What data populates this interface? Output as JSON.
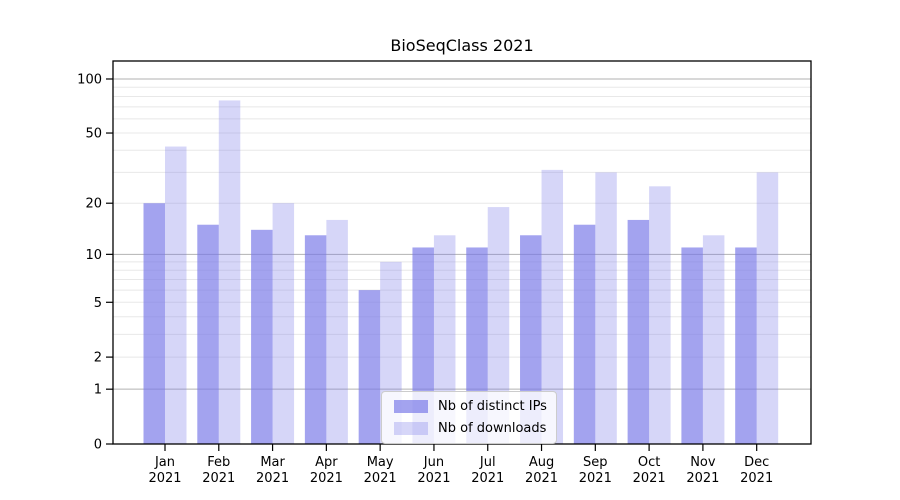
{
  "title": "BioSeqClass 2021",
  "legend": {
    "items": [
      {
        "label": "Nb of distinct IPs",
        "color": "rgba(120,120,232,0.68)"
      },
      {
        "label": "Nb of downloads",
        "color": "rgba(120,120,232,0.30)"
      }
    ]
  },
  "colors": {
    "bar_distinct_ips": "rgba(120,120,232,0.68)",
    "bar_downloads": "rgba(120,120,232,0.30)",
    "major_gridline": "#b2b2b2",
    "minor_gridline": "#e8e8e8",
    "axis": "#000000"
  },
  "chart_data": {
    "type": "bar",
    "title": "BioSeqClass 2021",
    "categories": [
      "Jan 2021",
      "Feb 2021",
      "Mar 2021",
      "Apr 2021",
      "May 2021",
      "Jun 2021",
      "Jul 2021",
      "Aug 2021",
      "Sep 2021",
      "Oct 2021",
      "Nov 2021",
      "Dec 2021"
    ],
    "series": [
      {
        "name": "Nb of distinct IPs",
        "values": [
          20,
          15,
          14,
          13,
          6,
          11,
          11,
          13,
          15,
          16,
          11,
          11
        ]
      },
      {
        "name": "Nb of downloads",
        "values": [
          42,
          76,
          20,
          16,
          9,
          13,
          19,
          31,
          30,
          25,
          13,
          30
        ]
      }
    ],
    "xlabel": "",
    "ylabel": "",
    "y_scale": "log1p",
    "y_ticks": [
      0,
      1,
      2,
      5,
      10,
      20,
      50,
      100
    ],
    "minor_grid_values": [
      2,
      3,
      4,
      5,
      6,
      7,
      8,
      9,
      20,
      30,
      40,
      50,
      60,
      70,
      80,
      90
    ],
    "major_grid_values": [
      1,
      10,
      100
    ],
    "ylim": [
      0,
      120
    ],
    "grid": "both",
    "legend_position": "lower center"
  }
}
